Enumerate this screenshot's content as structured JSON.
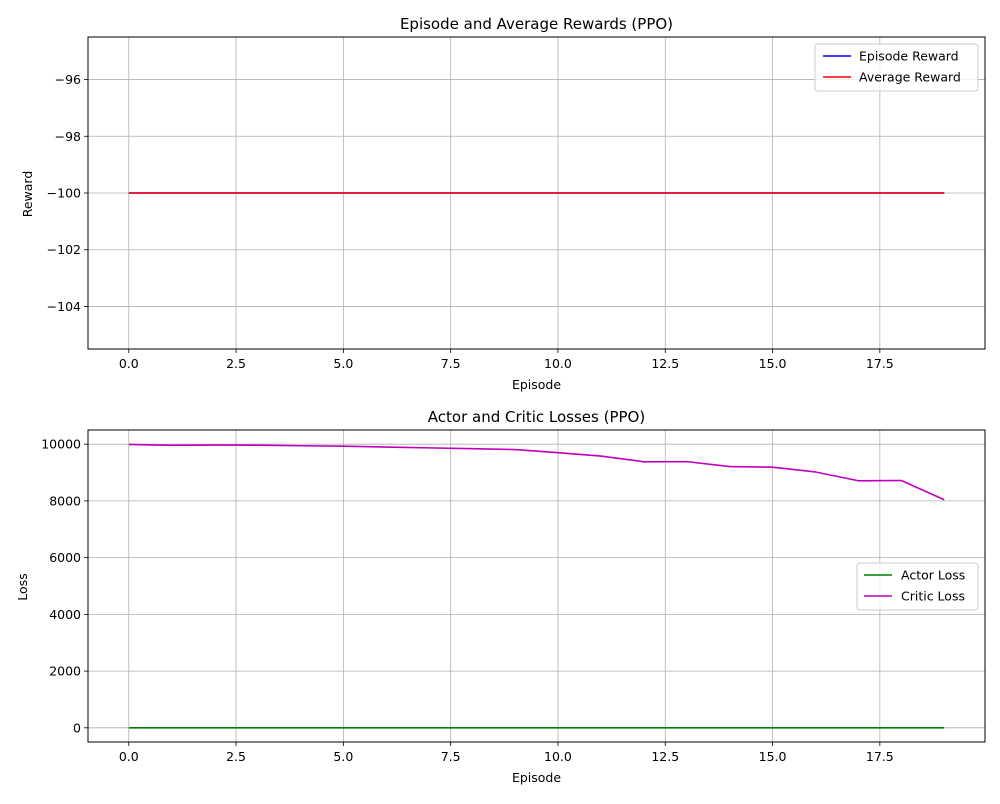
{
  "chart_data": [
    {
      "type": "line",
      "title": "Episode and Average Rewards (PPO)",
      "xlabel": "Episode",
      "ylabel": "Reward",
      "xlim": [
        -0.95,
        19.95
      ],
      "ylim": [
        -105.5,
        -94.5
      ],
      "xticks": [
        0,
        2.5,
        5,
        7.5,
        10,
        12.5,
        15,
        17.5
      ],
      "xtick_labels": [
        "0.0",
        "2.5",
        "5.0",
        "7.5",
        "10.0",
        "12.5",
        "15.0",
        "17.5"
      ],
      "yticks": [
        -104,
        -102,
        -100,
        -98,
        -96
      ],
      "ytick_labels": [
        "−104",
        "−102",
        "−100",
        "−98",
        "−96"
      ],
      "grid": true,
      "legend_position": "top-right",
      "x": [
        0,
        1,
        2,
        3,
        4,
        5,
        6,
        7,
        8,
        9,
        10,
        11,
        12,
        13,
        14,
        15,
        16,
        17,
        18,
        19
      ],
      "series": [
        {
          "name": "Episode Reward",
          "color": "#0000ff",
          "values": [
            -100,
            -100,
            -100,
            -100,
            -100,
            -100,
            -100,
            -100,
            -100,
            -100,
            -100,
            -100,
            -100,
            -100,
            -100,
            -100,
            -100,
            -100,
            -100,
            -100
          ]
        },
        {
          "name": "Average Reward",
          "color": "#ff0000",
          "values": [
            -100,
            -100,
            -100,
            -100,
            -100,
            -100,
            -100,
            -100,
            -100,
            -100,
            -100,
            -100,
            -100,
            -100,
            -100,
            -100,
            -100,
            -100,
            -100,
            -100
          ]
        }
      ]
    },
    {
      "type": "line",
      "title": "Actor and Critic Losses (PPO)",
      "xlabel": "Episode",
      "ylabel": "Loss",
      "xlim": [
        -0.95,
        19.95
      ],
      "ylim": [
        -500,
        10500
      ],
      "xticks": [
        0,
        2.5,
        5,
        7.5,
        10,
        12.5,
        15,
        17.5
      ],
      "xtick_labels": [
        "0.0",
        "2.5",
        "5.0",
        "7.5",
        "10.0",
        "12.5",
        "15.0",
        "17.5"
      ],
      "yticks": [
        0,
        2000,
        4000,
        6000,
        8000,
        10000
      ],
      "ytick_labels": [
        "0",
        "2000",
        "4000",
        "6000",
        "8000",
        "10000"
      ],
      "grid": true,
      "legend_position": "center-right",
      "x": [
        0,
        1,
        2,
        3,
        4,
        5,
        6,
        7,
        8,
        9,
        10,
        11,
        12,
        13,
        14,
        15,
        16,
        17,
        18,
        19
      ],
      "series": [
        {
          "name": "Actor Loss",
          "color": "#008000",
          "values": [
            0,
            0,
            0,
            0,
            0,
            0,
            0,
            0,
            0,
            0,
            0,
            0,
            0,
            0,
            0,
            0,
            0,
            0,
            0,
            0
          ]
        },
        {
          "name": "Critic Loss",
          "color": "#bf00bf",
          "values": [
            9990,
            9960,
            9970,
            9965,
            9945,
            9930,
            9900,
            9870,
            9840,
            9810,
            9700,
            9580,
            9380,
            9385,
            9210,
            9190,
            9020,
            8710,
            8720,
            8040
          ]
        }
      ]
    }
  ]
}
